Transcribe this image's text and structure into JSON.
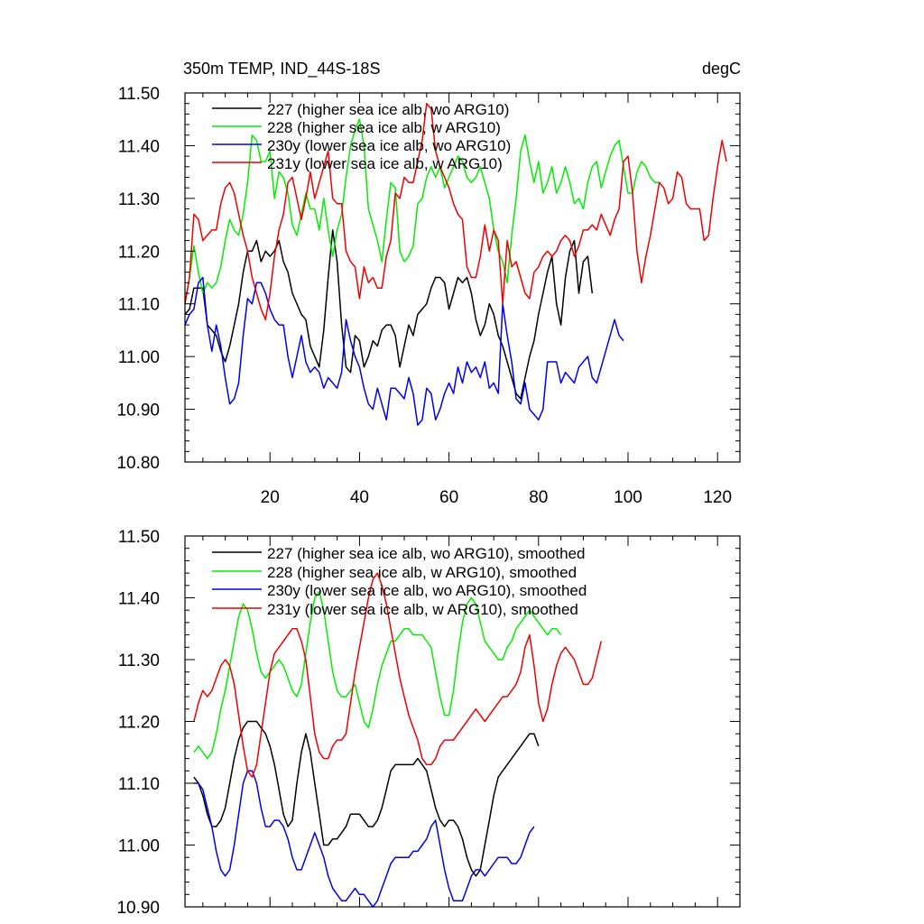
{
  "chart_data": [
    {
      "type": "line",
      "title_left": "350m TEMP, IND_44S-18S",
      "title_right": "degC",
      "xlabel": "",
      "ylabel": "",
      "xlim": [
        1,
        125
      ],
      "ylim": [
        10.8,
        11.5
      ],
      "xticks": [
        20,
        40,
        60,
        80,
        100,
        120
      ],
      "xtick_labels": [
        "20",
        "40",
        "60",
        "80",
        "100",
        "120"
      ],
      "yticks": [
        10.8,
        10.9,
        11.0,
        11.1,
        11.2,
        11.3,
        11.4,
        11.5
      ],
      "ytick_labels": [
        "10.80",
        "10.90",
        "11.00",
        "11.10",
        "11.20",
        "11.30",
        "11.40",
        "11.50"
      ],
      "legend_position": "top-left",
      "grid": false,
      "series": [
        {
          "name": "227 (higher sea ice alb, wo ARG10)",
          "color": "#000000",
          "x_start": 1,
          "values": [
            11.08,
            11.09,
            11.13,
            11.13,
            11.13,
            11.06,
            11.05,
            11.04,
            11.01,
            10.99,
            11.02,
            11.06,
            11.1,
            11.16,
            11.2,
            11.2,
            11.22,
            11.18,
            11.2,
            11.19,
            11.2,
            11.22,
            11.18,
            11.16,
            11.12,
            11.1,
            11.08,
            11.07,
            11.02,
            11.0,
            10.98,
            11.05,
            11.15,
            11.24,
            11.18,
            11.06,
            10.98,
            10.97,
            11.04,
            11.03,
            10.98,
            11.0,
            11.03,
            11.02,
            11.05,
            11.06,
            11.06,
            11.04,
            10.98,
            11.02,
            11.06,
            11.04,
            11.08,
            11.09,
            11.1,
            11.13,
            11.15,
            11.15,
            11.14,
            11.09,
            11.12,
            11.15,
            11.14,
            11.15,
            11.12,
            11.07,
            11.04,
            11.06,
            11.1,
            11.08,
            11.04,
            11.02,
            10.99,
            10.96,
            10.93,
            10.92,
            10.96,
            11.0,
            11.03,
            11.08,
            11.12,
            11.16,
            11.19,
            11.1,
            11.06,
            11.15,
            11.2,
            11.22,
            11.12,
            11.18,
            11.19,
            11.12
          ]
        },
        {
          "name": "228 (higher sea ice alb, w ARG10)",
          "color": "#00ee00",
          "x_start": 1,
          "values": [
            11.1,
            11.15,
            11.21,
            11.16,
            11.12,
            11.14,
            11.13,
            11.14,
            11.17,
            11.22,
            11.26,
            11.24,
            11.23,
            11.27,
            11.33,
            11.42,
            11.41,
            11.37,
            11.37,
            11.39,
            11.3,
            11.35,
            11.34,
            11.31,
            11.25,
            11.23,
            11.27,
            11.31,
            11.28,
            11.28,
            11.24,
            11.3,
            11.24,
            11.19,
            11.24,
            11.27,
            11.34,
            11.4,
            11.43,
            11.45,
            11.4,
            11.28,
            11.25,
            11.22,
            11.18,
            11.26,
            11.33,
            11.32,
            11.2,
            11.18,
            11.19,
            11.21,
            11.29,
            11.3,
            11.34,
            11.36,
            11.34,
            11.36,
            11.32,
            11.34,
            11.36,
            11.38,
            11.37,
            11.34,
            11.33,
            11.34,
            11.36,
            11.33,
            11.3,
            11.24,
            11.2,
            11.18,
            11.14,
            11.23,
            11.3,
            11.39,
            11.42,
            11.37,
            11.33,
            11.37,
            11.31,
            11.33,
            11.36,
            11.31,
            11.33,
            11.36,
            11.33,
            11.29,
            11.3,
            11.28,
            11.33,
            11.36,
            11.37,
            11.32,
            11.35,
            11.38,
            11.4,
            11.41,
            11.36,
            11.31,
            11.31,
            11.35,
            11.37,
            11.36,
            11.34,
            11.33,
            11.33
          ]
        },
        {
          "name": "230y (lower sea ice alb, wo ARG10)",
          "color": "#0000ee",
          "x_start": 1,
          "values": [
            11.06,
            11.08,
            11.09,
            11.14,
            11.15,
            11.06,
            11.01,
            11.06,
            11.02,
            10.96,
            10.91,
            10.92,
            10.95,
            11.04,
            11.11,
            11.1,
            11.14,
            11.14,
            11.12,
            11.09,
            11.07,
            11.06,
            11.06,
            11.0,
            10.96,
            11.0,
            11.04,
            10.99,
            10.97,
            10.98,
            10.97,
            10.94,
            10.96,
            10.95,
            10.94,
            10.97,
            11.07,
            11.03,
            11.0,
            10.98,
            10.94,
            10.91,
            10.9,
            10.94,
            10.91,
            10.88,
            10.94,
            10.94,
            10.93,
            10.92,
            10.96,
            10.93,
            10.87,
            10.88,
            10.94,
            10.93,
            10.88,
            10.9,
            10.93,
            10.95,
            10.93,
            10.98,
            10.95,
            10.99,
            10.97,
            10.98,
            10.96,
            10.99,
            10.94,
            10.95,
            10.93,
            11.1,
            11.04,
            10.99,
            10.92,
            10.91,
            10.95,
            10.9,
            10.89,
            10.88,
            10.9,
            10.99,
            10.99,
            10.99,
            10.95,
            10.97,
            10.96,
            10.95,
            10.98,
            10.99,
            11.0,
            10.96,
            10.95,
            10.98,
            11.01,
            11.04,
            11.07,
            11.04,
            11.03
          ]
        },
        {
          "name": "231y (lower sea ice alb, w ARG10)",
          "color": "#ee0000",
          "x_start": 1,
          "values": [
            11.1,
            11.15,
            11.27,
            11.26,
            11.22,
            11.23,
            11.24,
            11.24,
            11.29,
            11.32,
            11.33,
            11.31,
            11.27,
            11.23,
            11.2,
            11.15,
            11.12,
            11.09,
            11.07,
            11.12,
            11.19,
            11.24,
            11.27,
            11.33,
            11.34,
            11.3,
            11.26,
            11.3,
            11.35,
            11.3,
            11.33,
            11.36,
            11.39,
            11.3,
            11.29,
            11.29,
            11.2,
            11.18,
            11.17,
            11.11,
            11.17,
            11.14,
            11.15,
            11.13,
            11.13,
            11.19,
            11.22,
            11.31,
            11.3,
            11.34,
            11.33,
            11.33,
            11.37,
            11.41,
            11.48,
            11.47,
            11.39,
            11.36,
            11.34,
            11.32,
            11.29,
            11.27,
            11.26,
            11.17,
            11.15,
            11.15,
            11.19,
            11.25,
            11.2,
            11.24,
            11.22,
            11.1,
            11.22,
            11.17,
            11.18,
            11.15,
            11.12,
            11.11,
            11.16,
            11.17,
            11.19,
            11.2,
            11.19,
            11.2,
            11.22,
            11.23,
            11.22,
            11.19,
            11.21,
            11.24,
            11.24,
            11.25,
            11.24,
            11.27,
            11.25,
            11.23,
            11.26,
            11.28,
            11.37,
            11.38,
            11.31,
            11.2,
            11.14,
            11.19,
            11.23,
            11.28,
            11.33,
            11.32,
            11.29,
            11.3,
            11.35,
            11.34,
            11.29,
            11.28,
            11.28,
            11.28,
            11.22,
            11.23,
            11.3,
            11.36,
            11.41,
            11.37
          ]
        }
      ]
    },
    {
      "type": "line",
      "title_left": "",
      "title_right": "",
      "xlabel": "",
      "ylabel": "",
      "xlim": [
        1,
        125
      ],
      "ylim": [
        10.9,
        11.5
      ],
      "xticks": [
        20,
        40,
        60,
        80,
        100,
        120
      ],
      "xtick_labels": [],
      "yticks": [
        10.9,
        11.0,
        11.1,
        11.2,
        11.3,
        11.4,
        11.5
      ],
      "ytick_labels": [
        "10.90",
        "11.00",
        "11.10",
        "11.20",
        "11.30",
        "11.40",
        "11.50"
      ],
      "legend_position": "top-left",
      "grid": false,
      "series": [
        {
          "name": "227 (higher sea ice alb, wo ARG10), smoothed",
          "color": "#000000",
          "x_start": 3,
          "values": [
            11.11,
            11.1,
            11.08,
            11.05,
            11.03,
            11.03,
            11.04,
            11.06,
            11.1,
            11.14,
            11.17,
            11.19,
            11.2,
            11.2,
            11.2,
            11.19,
            11.18,
            11.16,
            11.13,
            11.09,
            11.05,
            11.03,
            11.04,
            11.1,
            11.15,
            11.18,
            11.15,
            11.1,
            11.05,
            11.0,
            11.0,
            11.01,
            11.01,
            11.02,
            11.03,
            11.05,
            11.05,
            11.05,
            11.04,
            11.03,
            11.03,
            11.04,
            11.06,
            11.09,
            11.12,
            11.13,
            11.13,
            11.13,
            11.13,
            11.13,
            11.14,
            11.13,
            11.12,
            11.09,
            11.06,
            11.04,
            11.03,
            11.04,
            11.04,
            11.03,
            11.01,
            10.98,
            10.96,
            10.95,
            10.96,
            11.0,
            11.04,
            11.08,
            11.11,
            11.12,
            11.13,
            11.14,
            11.15,
            11.16,
            11.17,
            11.18,
            11.18,
            11.16
          ]
        },
        {
          "name": "228 (higher sea ice alb, w ARG10), smoothed",
          "color": "#00ee00",
          "x_start": 3,
          "values": [
            11.15,
            11.16,
            11.15,
            11.14,
            11.15,
            11.18,
            11.22,
            11.25,
            11.29,
            11.33,
            11.37,
            11.39,
            11.38,
            11.35,
            11.31,
            11.28,
            11.27,
            11.28,
            11.29,
            11.3,
            11.29,
            11.27,
            11.25,
            11.24,
            11.26,
            11.31,
            11.36,
            11.4,
            11.41,
            11.38,
            11.33,
            11.28,
            11.25,
            11.24,
            11.24,
            11.25,
            11.26,
            11.23,
            11.2,
            11.19,
            11.22,
            11.26,
            11.29,
            11.31,
            11.33,
            11.33,
            11.34,
            11.35,
            11.35,
            11.34,
            11.34,
            11.34,
            11.33,
            11.32,
            11.28,
            11.24,
            11.21,
            11.21,
            11.25,
            11.31,
            11.36,
            11.39,
            11.4,
            11.39,
            11.36,
            11.33,
            11.32,
            11.31,
            11.3,
            11.3,
            11.32,
            11.33,
            11.35,
            11.36,
            11.37,
            11.38,
            11.37,
            11.36,
            11.35,
            11.34,
            11.35,
            11.35,
            11.34
          ]
        },
        {
          "name": "230y (lower sea ice alb, wo ARG10), smoothed",
          "color": "#0000ee",
          "x_start": 3,
          "values": [
            11.1,
            11.1,
            11.09,
            11.06,
            11.03,
            10.99,
            10.96,
            10.95,
            10.96,
            11.0,
            11.05,
            11.1,
            11.12,
            11.12,
            11.1,
            11.06,
            11.03,
            11.03,
            11.04,
            11.04,
            11.03,
            11.01,
            10.98,
            10.96,
            10.96,
            10.98,
            11.0,
            11.02,
            11.0,
            10.98,
            10.95,
            10.93,
            10.92,
            10.91,
            10.91,
            10.92,
            10.93,
            10.92,
            10.92,
            10.91,
            10.9,
            10.91,
            10.93,
            10.95,
            10.97,
            10.98,
            10.98,
            10.98,
            10.98,
            10.99,
            10.99,
            11.0,
            11.01,
            11.03,
            11.04,
            11.0,
            10.96,
            10.93,
            10.91,
            10.91,
            10.91,
            10.93,
            10.95,
            10.96,
            10.96,
            10.95,
            10.96,
            10.97,
            10.98,
            10.98,
            10.98,
            10.97,
            10.97,
            10.98,
            11.0,
            11.02,
            11.03
          ]
        },
        {
          "name": "231y (lower sea ice alb, w ARG10), smoothed",
          "color": "#ee0000",
          "x_start": 3,
          "values": [
            11.2,
            11.23,
            11.25,
            11.24,
            11.25,
            11.27,
            11.29,
            11.3,
            11.29,
            11.26,
            11.21,
            11.16,
            11.12,
            11.11,
            11.13,
            11.18,
            11.23,
            11.28,
            11.31,
            11.32,
            11.33,
            11.34,
            11.35,
            11.35,
            11.33,
            11.3,
            11.24,
            11.18,
            11.15,
            11.14,
            11.14,
            11.16,
            11.17,
            11.17,
            11.18,
            11.23,
            11.28,
            11.32,
            11.36,
            11.4,
            11.43,
            11.44,
            11.42,
            11.39,
            11.35,
            11.31,
            11.27,
            11.24,
            11.21,
            11.19,
            11.17,
            11.14,
            11.13,
            11.13,
            11.14,
            11.16,
            11.17,
            11.17,
            11.17,
            11.18,
            11.19,
            11.2,
            11.21,
            11.22,
            11.21,
            11.2,
            11.21,
            11.22,
            11.23,
            11.24,
            11.24,
            11.25,
            11.26,
            11.28,
            11.32,
            11.34,
            11.29,
            11.23,
            11.2,
            11.22,
            11.26,
            11.29,
            11.31,
            11.32,
            11.31,
            11.3,
            11.28,
            11.26,
            11.26,
            11.27,
            11.3,
            11.33
          ]
        }
      ]
    }
  ]
}
